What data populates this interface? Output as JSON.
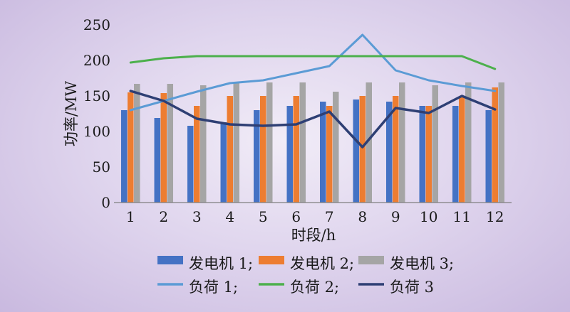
{
  "chart_data": {
    "type": "bar",
    "xlabel": "时段/h",
    "ylabel": "功率/MW",
    "categories": [
      "1",
      "2",
      "3",
      "4",
      "5",
      "6",
      "7",
      "8",
      "9",
      "10",
      "11",
      "12"
    ],
    "ylim": [
      0,
      250
    ],
    "yticks": [
      0,
      50,
      100,
      150,
      200,
      250
    ],
    "grid": false,
    "legend_position": "bottom",
    "bar_series": [
      {
        "name": "发电机 1",
        "legend_label": "发电机 1;",
        "color": "#4472c4",
        "values": [
          130,
          119,
          108,
          113,
          130,
          136,
          142,
          145,
          142,
          136,
          136,
          130
        ]
      },
      {
        "name": "发电机 2",
        "legend_label": "发电机 2;",
        "color": "#ed7d31",
        "values": [
          155,
          154,
          136,
          150,
          150,
          150,
          136,
          150,
          150,
          136,
          150,
          162
        ]
      },
      {
        "name": "发电机 3",
        "legend_label": "发电机 3;",
        "color": "#a5a5a5",
        "values": [
          167,
          167,
          165,
          168,
          169,
          169,
          156,
          169,
          169,
          165,
          169,
          169
        ]
      }
    ],
    "line_series": [
      {
        "name": "负荷 1",
        "legend_label": "负荷 1;",
        "color": "#5b9bd5",
        "values": [
          130,
          143,
          156,
          168,
          172,
          182,
          192,
          236,
          186,
          172,
          164,
          157
        ]
      },
      {
        "name": "负荷 2",
        "legend_label": "负荷 2;",
        "color": "#4cb04c",
        "values": [
          197,
          203,
          206,
          206,
          206,
          206,
          206,
          206,
          206,
          206,
          206,
          188
        ]
      },
      {
        "name": "负荷 3",
        "legend_label": "负荷 3",
        "color": "#2e3f74",
        "values": [
          157,
          143,
          118,
          110,
          108,
          110,
          128,
          78,
          133,
          126,
          150,
          131
        ]
      }
    ]
  }
}
